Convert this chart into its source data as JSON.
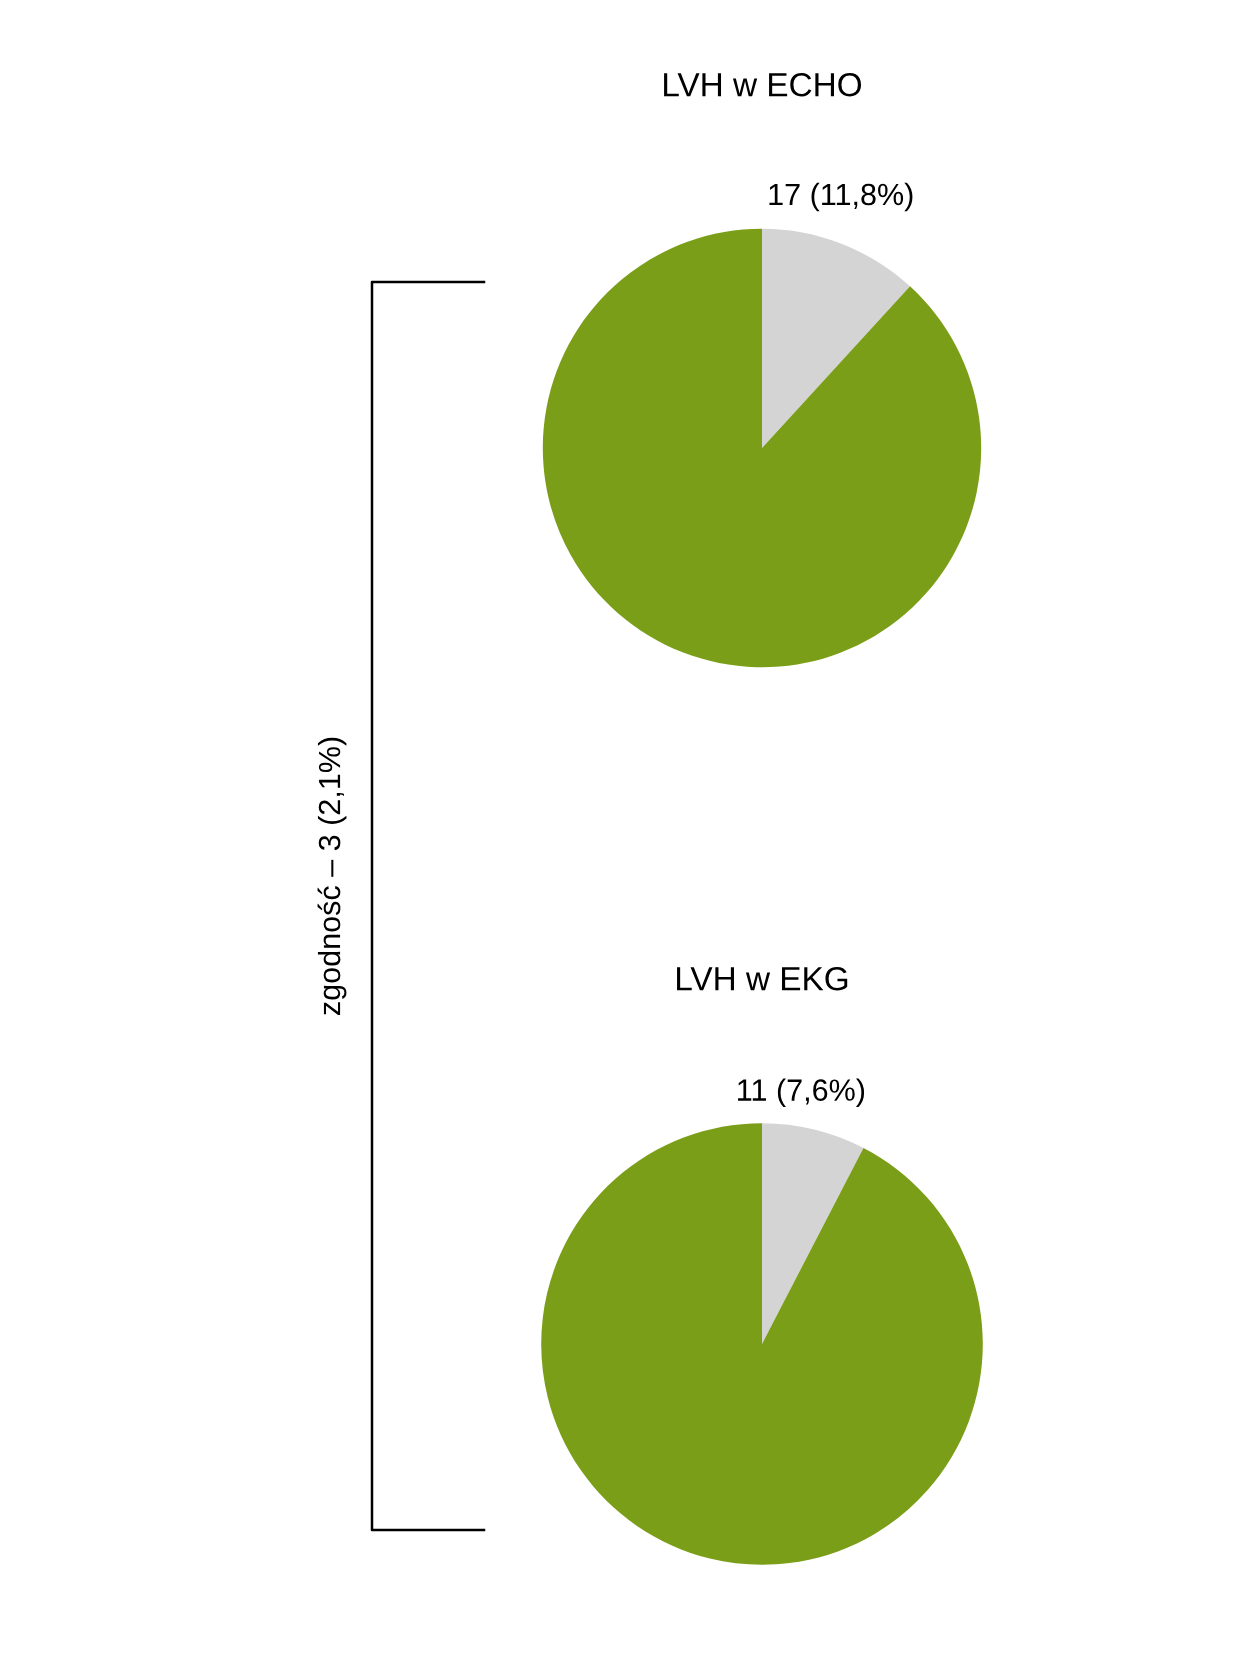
{
  "chart_data": [
    {
      "type": "pie",
      "title": "LVH w ECHO",
      "categories": [
        null,
        null
      ],
      "values": [
        11.8,
        88.2
      ],
      "colors": [
        "#d3d4d3",
        "#7a9e17"
      ],
      "value_labels": [
        "17 (11,8%)",
        null
      ],
      "annotations": [
        "zgodność – 3 (2,1%)"
      ]
    },
    {
      "type": "pie",
      "title": "LVH w EKG",
      "categories": [
        null,
        null
      ],
      "values": [
        7.6,
        92.4
      ],
      "colors": [
        "#d3d4d3",
        "#7a9e17"
      ],
      "value_labels": [
        "11 (7,6%)",
        null
      ]
    }
  ]
}
